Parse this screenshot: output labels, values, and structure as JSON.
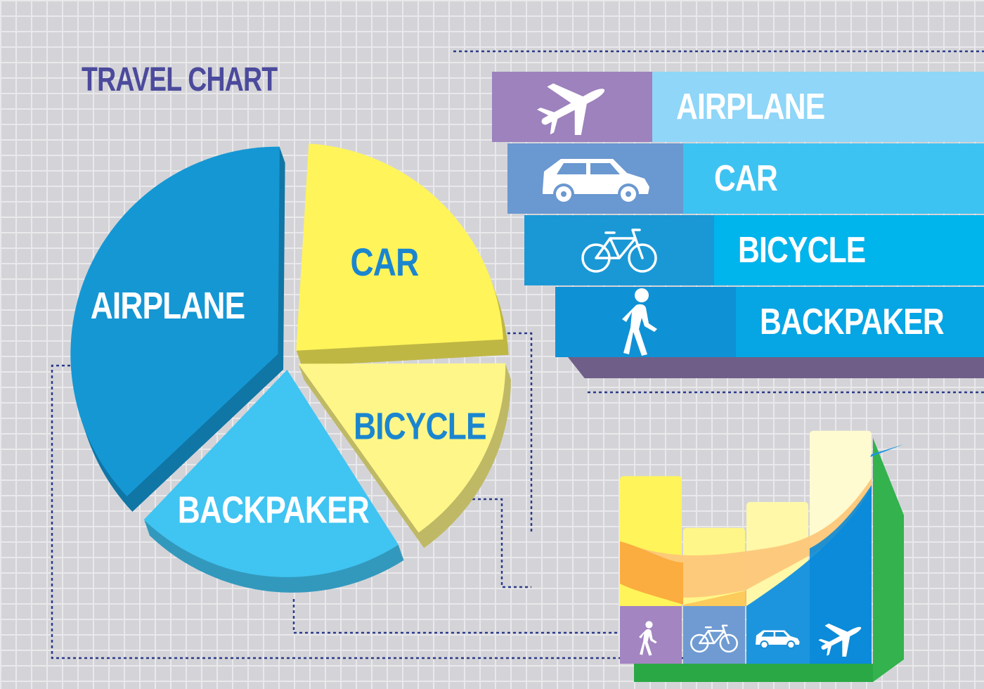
{
  "page_title": "TRAVEL CHART",
  "chart_data": [
    {
      "type": "pie",
      "categories": [
        "AIRPLANE",
        "CAR",
        "BICYCLE",
        "BACKPAKER"
      ],
      "values": [
        38,
        24,
        16,
        22
      ],
      "colors": [
        "#1597d4",
        "#fff45a",
        "#fef688",
        "#40c4f2"
      ],
      "label_color_dark": "#1b86cf",
      "label_color_light": "#ffffff"
    },
    {
      "type": "bar",
      "categories": [
        "BACKPAKER",
        "BICYCLE",
        "CAR",
        "AIRPLANE"
      ],
      "values": [
        29,
        21,
        25,
        36
      ],
      "icons": [
        "walker-icon",
        "bicycle-icon",
        "car-icon",
        "airplane-icon"
      ],
      "colors": [
        "#fff45a",
        "#fef688",
        "#fef8a8",
        "#fffbd0"
      ]
    }
  ],
  "legend": {
    "items": [
      {
        "label": "AIRPLANE",
        "icon": "airplane-icon",
        "icon_bg": "#9d82bd",
        "bg": "#8fd6f8"
      },
      {
        "label": "CAR",
        "icon": "car-icon",
        "icon_bg": "#6a98d0",
        "bg": "#3dc3f2"
      },
      {
        "label": "BICYCLE",
        "icon": "bicycle-icon",
        "icon_bg": "#1a98d6",
        "bg": "#00b4ec"
      },
      {
        "label": "BACKPAKER",
        "icon": "walker-icon",
        "icon_bg": "#0f91d6",
        "bg": "#06a5e4"
      }
    ]
  }
}
